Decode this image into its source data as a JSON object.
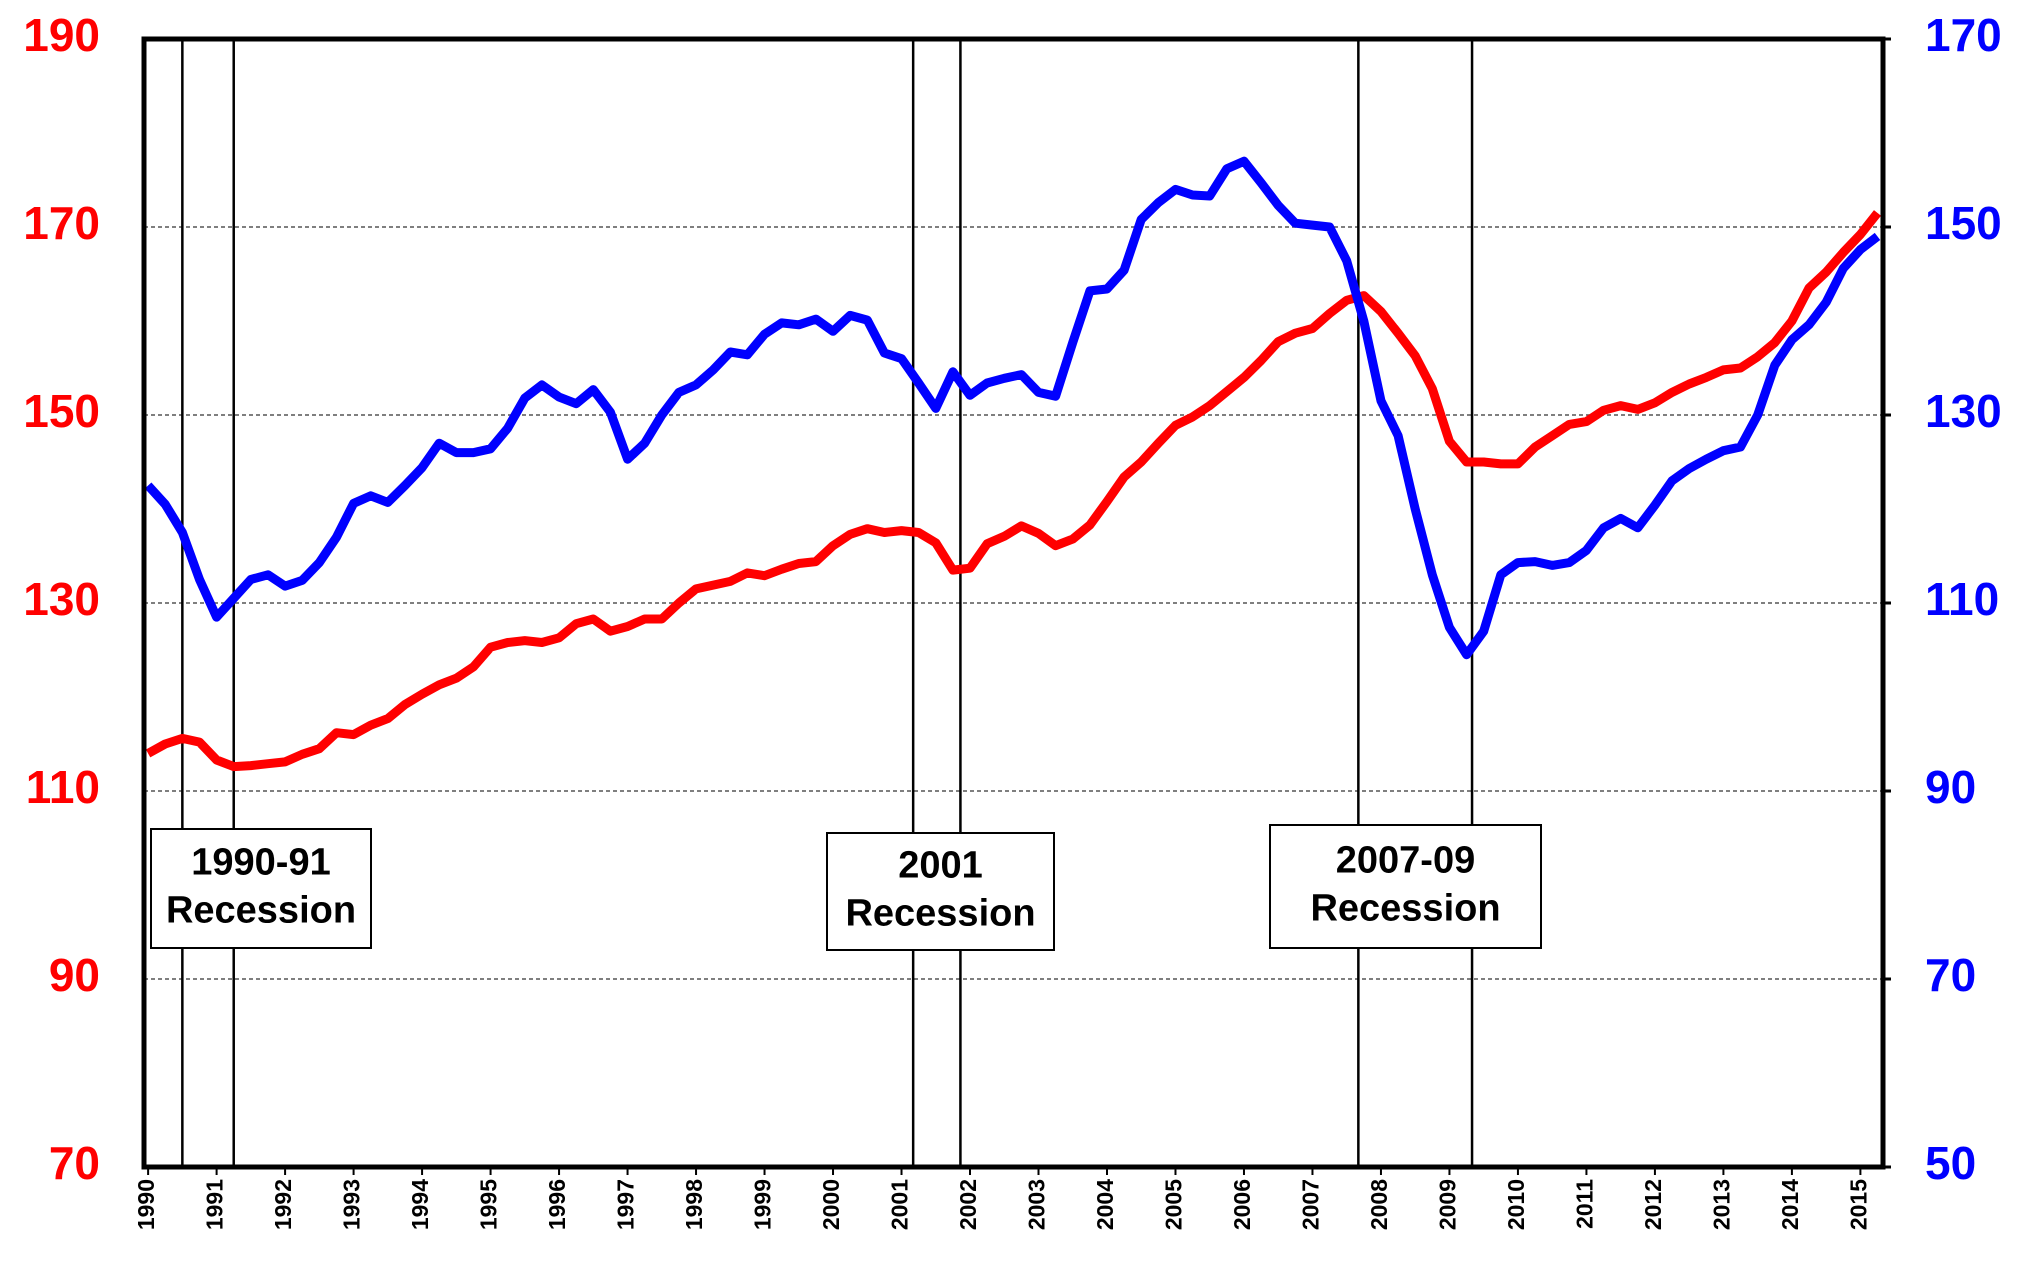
{
  "chart_data": {
    "type": "line",
    "x": [
      1990,
      1990.25,
      1990.5,
      1990.75,
      1991,
      1991.25,
      1991.5,
      1991.75,
      1992,
      1992.25,
      1992.5,
      1992.75,
      1993,
      1993.25,
      1993.5,
      1993.75,
      1994,
      1994.25,
      1994.5,
      1994.75,
      1995,
      1995.25,
      1995.5,
      1995.75,
      1996,
      1996.25,
      1996.5,
      1996.75,
      1997,
      1997.25,
      1997.5,
      1997.75,
      1998,
      1998.25,
      1998.5,
      1998.75,
      1999,
      1999.25,
      1999.5,
      1999.75,
      2000,
      2000.25,
      2000.5,
      2000.75,
      2001,
      2001.25,
      2001.5,
      2001.75,
      2002,
      2002.25,
      2002.5,
      2002.75,
      2003,
      2003.25,
      2003.5,
      2003.75,
      2004,
      2004.25,
      2004.5,
      2004.75,
      2005,
      2005.25,
      2005.5,
      2005.75,
      2006,
      2006.25,
      2006.5,
      2006.75,
      2007,
      2007.25,
      2007.5,
      2007.75,
      2008,
      2008.25,
      2008.5,
      2008.75,
      2009,
      2009.25,
      2009.5,
      2009.75,
      2010,
      2010.25,
      2010.5,
      2010.75,
      2011,
      2011.25,
      2011.5,
      2011.75,
      2012,
      2012.25,
      2012.5,
      2012.75,
      2013,
      2013.25,
      2013.5,
      2013.75,
      2014,
      2014.25,
      2014.5,
      2014.75,
      2015,
      2015.25
    ],
    "series": [
      {
        "color": "#ff0000",
        "axis": "y",
        "values": [
          114,
          115,
          115.6,
          115.2,
          113.3,
          112.6,
          112.7,
          112.9,
          113.1,
          113.9,
          114.5,
          116.2,
          116,
          117,
          117.7,
          119.2,
          120.3,
          121.3,
          122,
          123.2,
          125.3,
          125.8,
          126,
          125.8,
          126.3,
          127.8,
          128.3,
          127,
          127.5,
          128.3,
          128.3,
          130,
          131.5,
          131.9,
          132.3,
          133.2,
          132.9,
          133.6,
          134.2,
          134.4,
          136.1,
          137.3,
          137.9,
          137.5,
          137.7,
          137.5,
          136.4,
          133.5,
          133.7,
          136.3,
          137.1,
          138.2,
          137.4,
          136.1,
          136.8,
          138.3,
          140.8,
          143.4,
          145,
          147,
          148.9,
          149.8,
          151,
          152.5,
          154,
          155.8,
          157.8,
          158.7,
          159.2,
          160.8,
          162.2,
          162.7,
          161,
          158.7,
          156.3,
          152.8,
          147.2,
          145,
          145,
          144.8,
          144.8,
          146.6,
          147.8,
          149,
          149.3,
          150.5,
          151,
          150.6,
          151.3,
          152.4,
          153.3,
          154,
          154.8,
          155,
          156.2,
          157.7,
          160,
          163.5,
          165.2,
          167.3,
          169.2,
          171.5
        ]
      },
      {
        "color": "#0000ff",
        "axis": "y2",
        "values": [
          122.5,
          120.5,
          117.5,
          112.5,
          108.5,
          110.5,
          112.5,
          113,
          111.8,
          112.4,
          114.3,
          117,
          120.6,
          121.4,
          120.7,
          122.5,
          124.4,
          127,
          126,
          126,
          126.4,
          128.6,
          131.8,
          133.2,
          131.9,
          131.2,
          132.7,
          130.3,
          125.3,
          127,
          130,
          132.4,
          133.2,
          134.8,
          136.7,
          136.4,
          138.6,
          139.8,
          139.6,
          140.2,
          138.9,
          140.6,
          140.1,
          136.6,
          136,
          133.4,
          130.7,
          134.6,
          132.1,
          133.4,
          133.9,
          134.3,
          132.4,
          132,
          137.7,
          143.2,
          143.4,
          145.4,
          150.8,
          152.6,
          154,
          153.4,
          153.3,
          156.2,
          157,
          154.7,
          152.3,
          150.4,
          150.2,
          150,
          146.4,
          140,
          131.5,
          127.8,
          120,
          113,
          107.4,
          104.5,
          107,
          113,
          114.3,
          114.4,
          114,
          114.3,
          115.6,
          118,
          119,
          118,
          120.4,
          123,
          124.3,
          125.3,
          126.2,
          126.6,
          130,
          135.3,
          138,
          139.6,
          142,
          145.6,
          147.6,
          149
        ]
      }
    ],
    "xlim": [
      1989.94,
      2015.33
    ],
    "xticks": [
      1990,
      1991,
      1992,
      1993,
      1994,
      1995,
      1996,
      1997,
      1998,
      1999,
      2000,
      2001,
      2002,
      2003,
      2004,
      2005,
      2006,
      2007,
      2008,
      2009,
      2010,
      2011,
      2012,
      2013,
      2014,
      2015
    ],
    "ylim": [
      70,
      190
    ],
    "yticks": [
      70,
      90,
      110,
      130,
      150,
      170,
      190
    ],
    "ycolor": "#ff0000",
    "y2lim": [
      50,
      170
    ],
    "y2ticks": [
      50,
      70,
      90,
      110,
      130,
      150,
      170
    ],
    "y2color": "#0000ff",
    "grid": true,
    "recessions": [
      {
        "start": 1990.5,
        "end": 1991.25,
        "label": [
          "1990-91",
          "Recession"
        ]
      },
      {
        "start": 2001.17,
        "end": 2001.86,
        "label": [
          "2001",
          "Recession"
        ]
      },
      {
        "start": 2007.67,
        "end": 2009.33,
        "label": [
          "2007-09",
          "Recession"
        ]
      }
    ]
  }
}
